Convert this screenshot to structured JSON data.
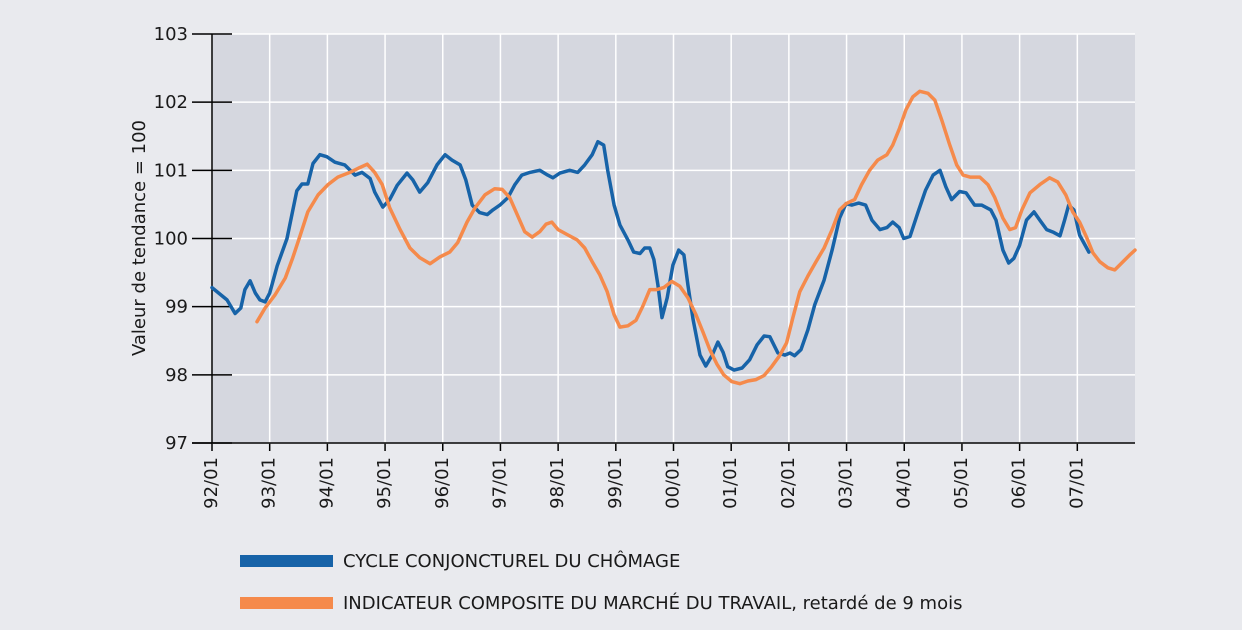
{
  "chart_data": {
    "type": "line",
    "y_label": "Valeur de tendance = 100",
    "xlim": [
      1992,
      2008
    ],
    "xticks": [
      {
        "value": 1992,
        "label": "92/01"
      },
      {
        "value": 1993,
        "label": "93/01"
      },
      {
        "value": 1994,
        "label": "94/01"
      },
      {
        "value": 1995,
        "label": "95/01"
      },
      {
        "value": 1996,
        "label": "96/01"
      },
      {
        "value": 1997,
        "label": "97/01"
      },
      {
        "value": 1998,
        "label": "98/01"
      },
      {
        "value": 1999,
        "label": "99/01"
      },
      {
        "value": 2000,
        "label": "00/01"
      },
      {
        "value": 2001,
        "label": "01/01"
      },
      {
        "value": 2002,
        "label": "02/01"
      },
      {
        "value": 2003,
        "label": "03/01"
      },
      {
        "value": 2004,
        "label": "04/01"
      },
      {
        "value": 2005,
        "label": "05/01"
      },
      {
        "value": 2006,
        "label": "06/01"
      },
      {
        "value": 2007,
        "label": "07/01"
      }
    ],
    "ylim": [
      97,
      103
    ],
    "yticks": [
      97,
      98,
      99,
      100,
      101,
      102,
      103
    ],
    "grid": true,
    "legend": "bottom",
    "series": [
      {
        "name": "CYCLE CONJONCTUREL DU CHÔMAGE",
        "color": "#1763a8",
        "x": [
          1992.0,
          1992.26,
          1992.4,
          1992.5,
          1992.57,
          1992.66,
          1992.75,
          1992.83,
          1992.92,
          1993.0,
          1993.13,
          1993.3,
          1993.47,
          1993.56,
          1993.66,
          1993.75,
          1993.87,
          1993.99,
          1994.13,
          1994.3,
          1994.48,
          1994.6,
          1994.74,
          1994.82,
          1994.96,
          1995.08,
          1995.21,
          1995.38,
          1995.48,
          1995.6,
          1995.74,
          1995.9,
          1996.04,
          1996.16,
          1996.3,
          1996.4,
          1996.51,
          1996.64,
          1996.77,
          1996.87,
          1996.99,
          1997.13,
          1997.25,
          1997.37,
          1997.51,
          1997.68,
          1997.82,
          1997.91,
          1998.03,
          1998.2,
          1998.34,
          1998.46,
          1998.59,
          1998.69,
          1998.79,
          1998.86,
          1998.97,
          1999.07,
          1999.21,
          1999.31,
          1999.42,
          1999.5,
          1999.59,
          1999.66,
          1999.73,
          1999.8,
          1999.89,
          1999.99,
          2000.09,
          2000.18,
          2000.25,
          2000.34,
          2000.46,
          2000.56,
          2000.67,
          2000.77,
          2000.86,
          2000.94,
          2001.05,
          2001.19,
          2001.32,
          2001.45,
          2001.57,
          2001.67,
          2001.81,
          2001.93,
          2002.02,
          2002.1,
          2002.21,
          2002.33,
          2002.45,
          2002.61,
          2002.75,
          2002.88,
          2002.99,
          2003.09,
          2003.21,
          2003.33,
          2003.44,
          2003.58,
          2003.7,
          2003.8,
          2003.91,
          2003.99,
          2004.1,
          2004.24,
          2004.37,
          2004.5,
          2004.62,
          2004.72,
          2004.82,
          2004.96,
          2005.07,
          2005.22,
          2005.34,
          2005.5,
          2005.59,
          2005.71,
          2005.81,
          2005.9,
          2006.0,
          2006.12,
          2006.25,
          2006.35,
          2006.47,
          2006.59,
          2006.7,
          2006.78,
          2006.85,
          2006.94,
          2007.04,
          2007.2
        ],
        "values": [
          99.28,
          99.1,
          98.9,
          98.98,
          99.25,
          99.38,
          99.2,
          99.1,
          99.07,
          99.2,
          99.6,
          100.0,
          100.7,
          100.8,
          100.8,
          101.1,
          101.23,
          101.2,
          101.12,
          101.08,
          100.93,
          100.97,
          100.88,
          100.68,
          100.46,
          100.57,
          100.78,
          100.96,
          100.86,
          100.68,
          100.82,
          101.08,
          101.23,
          101.15,
          101.08,
          100.86,
          100.49,
          100.38,
          100.35,
          100.42,
          100.49,
          100.6,
          100.79,
          100.93,
          100.97,
          101.0,
          100.93,
          100.89,
          100.96,
          101.0,
          100.97,
          101.08,
          101.23,
          101.42,
          101.37,
          101.0,
          100.49,
          100.2,
          99.98,
          99.8,
          99.78,
          99.86,
          99.86,
          99.69,
          99.32,
          98.84,
          99.13,
          99.61,
          99.83,
          99.76,
          99.32,
          98.81,
          98.29,
          98.13,
          98.29,
          98.48,
          98.33,
          98.12,
          98.07,
          98.1,
          98.22,
          98.44,
          98.57,
          98.56,
          98.32,
          98.29,
          98.32,
          98.28,
          98.37,
          98.66,
          99.03,
          99.39,
          99.83,
          100.3,
          100.51,
          100.49,
          100.52,
          100.49,
          100.27,
          100.13,
          100.16,
          100.24,
          100.16,
          100.0,
          100.03,
          100.39,
          100.71,
          100.93,
          101.0,
          100.76,
          100.57,
          100.69,
          100.67,
          100.49,
          100.49,
          100.42,
          100.27,
          99.83,
          99.64,
          99.71,
          99.9,
          100.27,
          100.39,
          100.27,
          100.13,
          100.09,
          100.04,
          100.27,
          100.49,
          100.42,
          100.05,
          99.8
        ]
      },
      {
        "name": "INDICATEUR COMPOSITE DU MARCHÉ DU TRAVAIL, retardé de 9 mois",
        "color": "#f58a4b",
        "x": [
          1992.78,
          1992.92,
          1993.09,
          1993.27,
          1993.4,
          1993.53,
          1993.66,
          1993.84,
          1994.01,
          1994.18,
          1994.39,
          1994.56,
          1994.69,
          1994.82,
          1994.95,
          1995.08,
          1995.26,
          1995.43,
          1995.6,
          1995.78,
          1995.95,
          1996.12,
          1996.26,
          1996.42,
          1996.56,
          1996.73,
          1996.9,
          1997.03,
          1997.16,
          1997.29,
          1997.42,
          1997.55,
          1997.68,
          1997.79,
          1997.89,
          1998.0,
          1998.15,
          1998.33,
          1998.46,
          1998.59,
          1998.72,
          1998.85,
          1998.97,
          1999.07,
          1999.21,
          1999.35,
          1999.47,
          1999.59,
          1999.71,
          1999.83,
          1999.97,
          2000.11,
          2000.25,
          2000.39,
          2000.51,
          2000.63,
          2000.75,
          2000.87,
          2001.01,
          2001.15,
          2001.29,
          2001.43,
          2001.57,
          2001.7,
          2001.84,
          2001.96,
          2002.07,
          2002.19,
          2002.33,
          2002.47,
          2002.61,
          2002.75,
          2002.88,
          2002.99,
          2003.14,
          2003.26,
          2003.4,
          2003.54,
          2003.7,
          2003.8,
          2003.92,
          2004.03,
          2004.15,
          2004.27,
          2004.41,
          2004.53,
          2004.65,
          2004.79,
          2004.91,
          2005.02,
          2005.14,
          2005.31,
          2005.45,
          2005.57,
          2005.71,
          2005.83,
          2005.93,
          2006.04,
          2006.18,
          2006.35,
          2006.52,
          2006.66,
          2006.8,
          2006.92,
          2007.04,
          2007.16,
          2007.27,
          2007.39,
          2007.53,
          2007.65,
          2007.77,
          2007.91,
          2008.0
        ],
        "values": [
          98.78,
          98.98,
          99.17,
          99.42,
          99.72,
          100.05,
          100.39,
          100.64,
          100.79,
          100.9,
          100.97,
          101.04,
          101.09,
          100.97,
          100.79,
          100.45,
          100.13,
          99.86,
          99.72,
          99.63,
          99.73,
          99.8,
          99.94,
          100.24,
          100.45,
          100.64,
          100.73,
          100.72,
          100.6,
          100.35,
          100.1,
          100.02,
          100.1,
          100.21,
          100.24,
          100.13,
          100.06,
          99.98,
          99.86,
          99.66,
          99.47,
          99.22,
          98.88,
          98.7,
          98.72,
          98.8,
          99.01,
          99.25,
          99.25,
          99.28,
          99.37,
          99.3,
          99.13,
          98.88,
          98.63,
          98.37,
          98.16,
          98.0,
          97.9,
          97.87,
          97.91,
          97.93,
          97.99,
          98.12,
          98.28,
          98.47,
          98.84,
          99.22,
          99.45,
          99.66,
          99.86,
          100.13,
          100.42,
          100.51,
          100.57,
          100.79,
          101.0,
          101.15,
          101.23,
          101.37,
          101.62,
          101.89,
          102.08,
          102.16,
          102.13,
          102.03,
          101.74,
          101.37,
          101.08,
          100.93,
          100.9,
          100.9,
          100.79,
          100.6,
          100.3,
          100.13,
          100.16,
          100.42,
          100.67,
          100.79,
          100.89,
          100.83,
          100.64,
          100.39,
          100.24,
          100.02,
          99.79,
          99.66,
          99.57,
          99.54,
          99.64,
          99.76,
          99.83
        ]
      }
    ]
  }
}
